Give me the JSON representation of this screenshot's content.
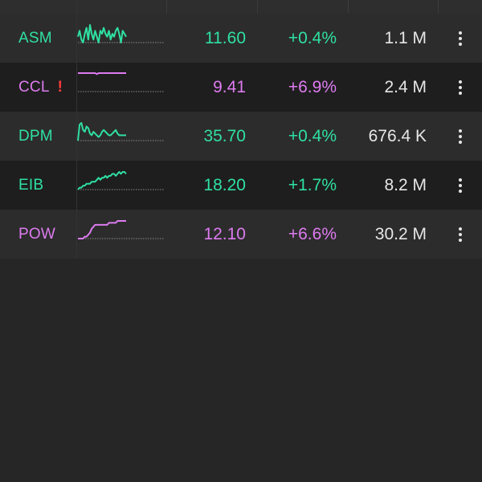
{
  "colors": {
    "up": "#2fe0a2",
    "ceiling": "#dd7bf0",
    "alert": "#ff3b3b",
    "volume": "#e6e6e6"
  },
  "watchlist": {
    "rows": [
      {
        "symbol": "ASM",
        "alert": "",
        "price": "11.60",
        "change": "+0.4%",
        "volume": "1.1 M",
        "status": "up",
        "spark": [
          4,
          6,
          3,
          2,
          5,
          7,
          3,
          8,
          5,
          3,
          6,
          4,
          2,
          6,
          5,
          7,
          5,
          4,
          6,
          3,
          5,
          4,
          6,
          7,
          5,
          2,
          6,
          5,
          4
        ]
      },
      {
        "symbol": "CCL",
        "alert": "!",
        "price": "9.41",
        "change": "+6.9%",
        "volume": "2.4 M",
        "status": "ceiling",
        "spark": [
          5,
          5,
          5,
          5,
          5,
          5,
          5,
          5,
          5,
          5,
          5,
          4.6,
          5,
          5,
          5,
          5,
          5,
          5,
          5,
          5,
          5,
          5,
          5,
          5,
          5,
          5,
          5,
          5,
          5
        ]
      },
      {
        "symbol": "DPM",
        "alert": "",
        "price": "35.70",
        "change": "+0.4%",
        "volume": "676.4 K",
        "status": "up",
        "spark": [
          0,
          9,
          10,
          6,
          5,
          8,
          7,
          4,
          3,
          5,
          4,
          3,
          2,
          3,
          5,
          6,
          5,
          4,
          3,
          3,
          4,
          5,
          6,
          4,
          3,
          3,
          3,
          3,
          3
        ]
      },
      {
        "symbol": "EIB",
        "alert": "",
        "price": "18.20",
        "change": "+1.7%",
        "volume": "8.2 M",
        "status": "up",
        "spark": [
          0,
          1,
          1,
          2,
          2,
          3,
          3,
          3,
          4,
          4,
          4,
          5,
          6,
          5,
          6,
          6,
          7,
          6,
          7,
          7,
          8,
          8,
          7,
          8,
          9,
          8,
          9,
          9,
          8
        ]
      },
      {
        "symbol": "POW",
        "alert": "",
        "price": "12.10",
        "change": "+6.6%",
        "volume": "30.2 M",
        "status": "ceiling",
        "spark": [
          0,
          0,
          0,
          0,
          1,
          1,
          2,
          3,
          5,
          6,
          7,
          7,
          7,
          7,
          7,
          7,
          7,
          7,
          8,
          8,
          8,
          8,
          8,
          9,
          9,
          9,
          9,
          9,
          9
        ]
      }
    ]
  },
  "icons": {
    "menu": "more-vertical-icon",
    "alert": "exclamation-icon"
  }
}
